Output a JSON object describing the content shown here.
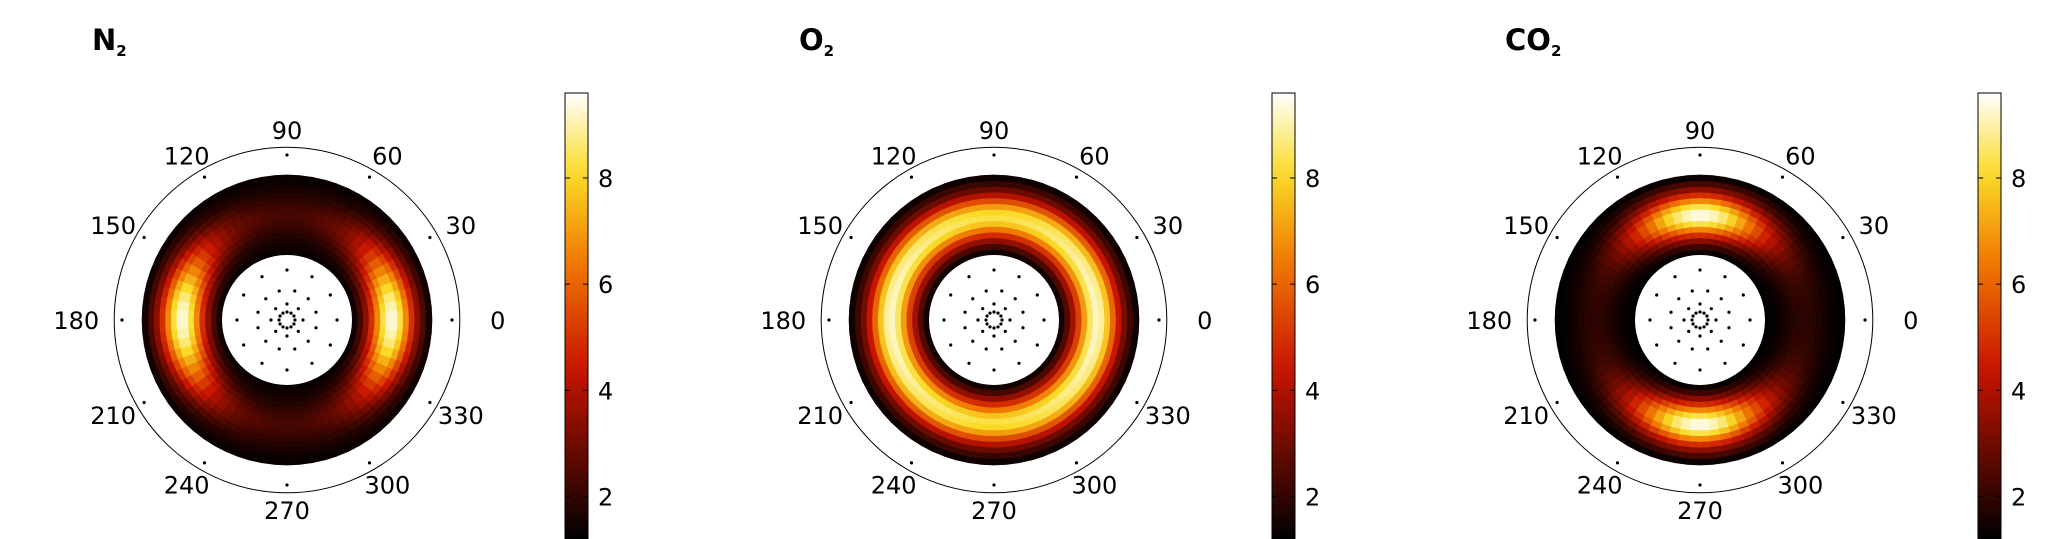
{
  "chart_data": [
    {
      "type": "heatmap",
      "title_main": "N",
      "title_sub": "2",
      "angle_labels": [
        "90",
        "60",
        "30",
        "0",
        "330",
        "300",
        "270",
        "240",
        "210",
        "180",
        "150",
        "120"
      ],
      "colorbar": {
        "ticks": [
          "2",
          "4",
          "6",
          "8"
        ],
        "range": [
          1.2,
          9.6
        ]
      },
      "grid": false,
      "pattern": {
        "kind": "lobes",
        "axis_deg": 0,
        "width_deg": 40,
        "radius_frac": 0.5,
        "peak": 9.4,
        "floor": 1.3,
        "base": 5.0
      }
    },
    {
      "type": "heatmap",
      "title_main": "O",
      "title_sub": "2",
      "angle_labels": [
        "90",
        "60",
        "30",
        "0",
        "330",
        "300",
        "270",
        "240",
        "210",
        "180",
        "150",
        "120"
      ],
      "colorbar": {
        "ticks": [
          "2",
          "4",
          "6",
          "8"
        ],
        "range": [
          1.2,
          9.6
        ]
      },
      "grid": false,
      "pattern": {
        "kind": "ring",
        "axis_deg": 0,
        "width_deg": 70,
        "radius_frac": 0.48,
        "peak": 9.2,
        "floor": 1.3,
        "base": 7.2
      }
    },
    {
      "type": "heatmap",
      "title_main": "CO",
      "title_sub": "2",
      "angle_labels": [
        "90",
        "60",
        "30",
        "0",
        "330",
        "300",
        "270",
        "240",
        "210",
        "180",
        "150",
        "120"
      ],
      "colorbar": {
        "ticks": [
          "2",
          "4",
          "6",
          "8"
        ],
        "range": [
          1.2,
          9.6
        ]
      },
      "grid": false,
      "pattern": {
        "kind": "lobes",
        "axis_deg": 90,
        "width_deg": 38,
        "radius_frac": 0.5,
        "peak": 9.5,
        "floor": 1.2,
        "base": 4.0
      }
    }
  ]
}
